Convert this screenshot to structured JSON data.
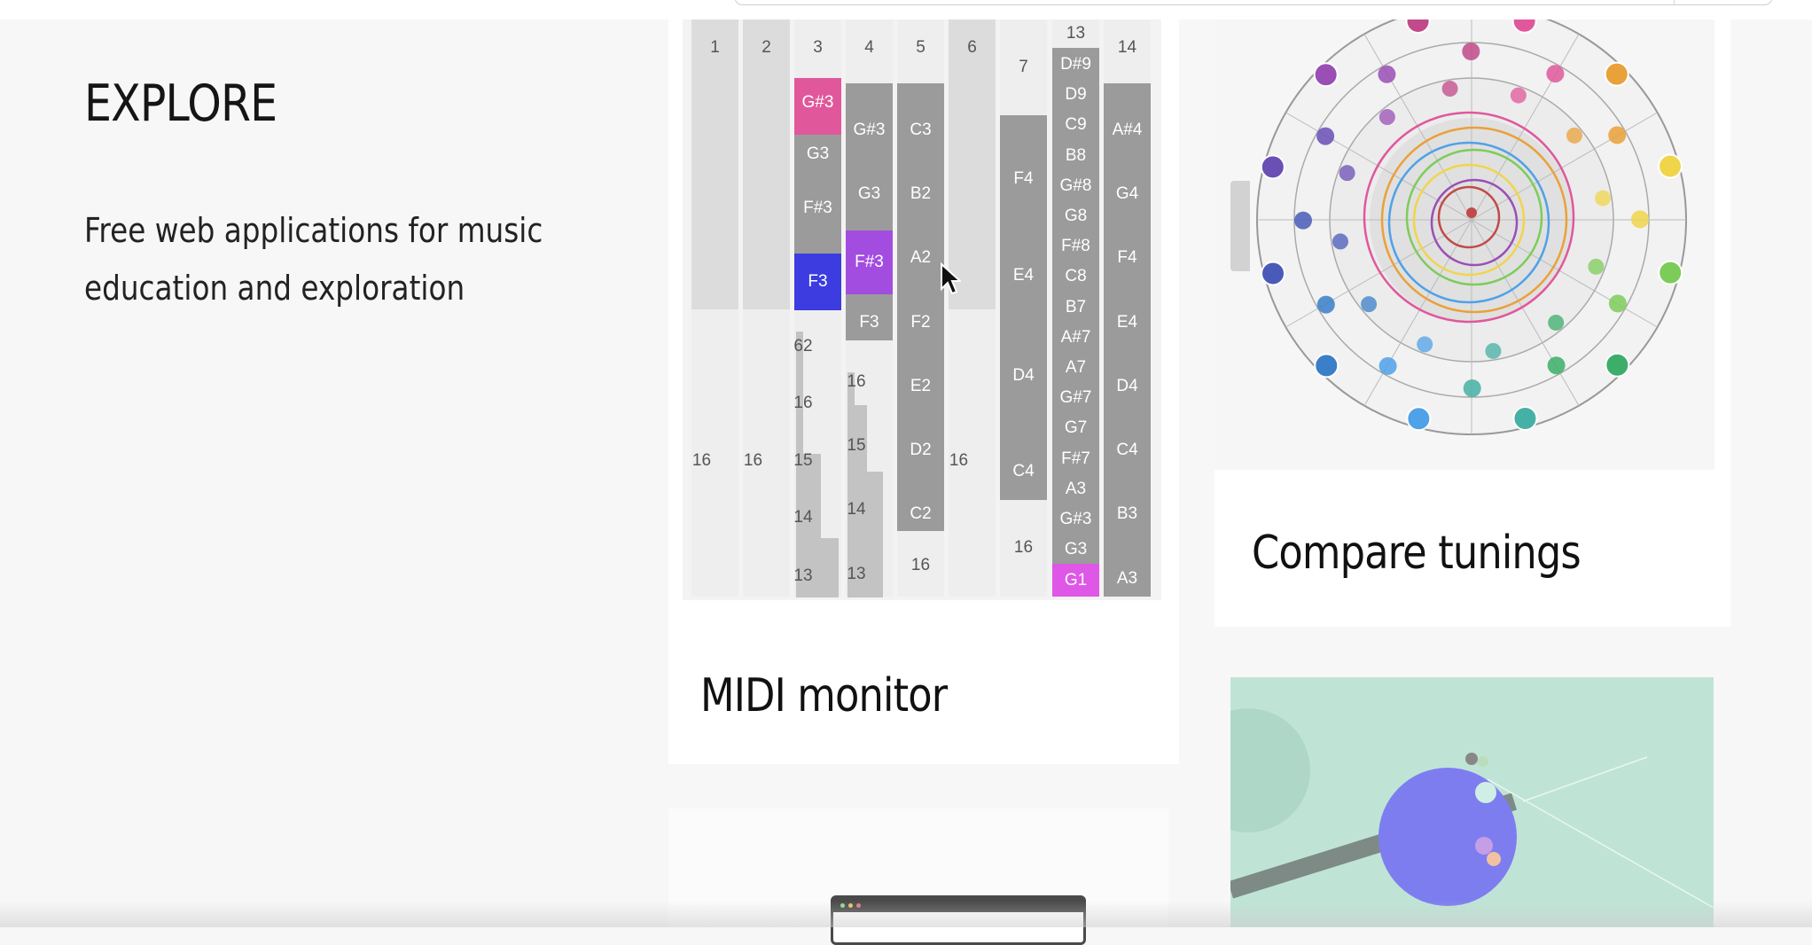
{
  "intro": {
    "heading": "EXPLORE",
    "description": "Free web applications for music education and exploration"
  },
  "cards": {
    "midi_monitor": {
      "title": "MIDI monitor"
    },
    "compare_tunings": {
      "title": "Compare tunings"
    }
  },
  "midi_columns": [
    {
      "header": "1",
      "bottom": "16"
    },
    {
      "header": "2",
      "bottom": "16"
    },
    {
      "header": "3",
      "notes": [
        "G#3",
        "G3",
        "F#3",
        "F3"
      ],
      "velocities": [
        "62",
        "16",
        "15",
        "14",
        "13"
      ]
    },
    {
      "header": "4",
      "notes": [
        "G#3",
        "G3",
        "F#3",
        "F3"
      ],
      "velocities": [
        "16",
        "15",
        "14",
        "13"
      ]
    },
    {
      "header": "5",
      "notes": [
        "C3",
        "B2",
        "A2",
        "F2",
        "E2",
        "D2",
        "C2"
      ],
      "bottom": "16"
    },
    {
      "header": "6",
      "bottom": "16"
    },
    {
      "header": "7",
      "notes": [
        "F4",
        "E4",
        "D4",
        "C4"
      ],
      "bottom": "16"
    },
    {
      "header": "13",
      "notes": [
        "D#9",
        "D9",
        "C9",
        "B8",
        "G#8",
        "G8",
        "F#8",
        "C8",
        "B7",
        "A#7",
        "A7",
        "G#7",
        "G7",
        "F#7",
        "A3",
        "G#3",
        "G3",
        "G1"
      ]
    },
    {
      "header": "14",
      "notes": [
        "A#4",
        "G4",
        "F4",
        "E4",
        "D4",
        "C4",
        "B3",
        "A3"
      ]
    }
  ],
  "colors": {
    "pink": "#e0589b",
    "blue": "#3c3ce0",
    "purple": "#a24de0",
    "magenta": "#df57e6",
    "note_gray": "#9b9b9b"
  },
  "icons": {
    "cursor": "mouse-pointer-icon",
    "tuning_chart": "tuning-circle-icon",
    "app_window": "app-window-icon"
  }
}
